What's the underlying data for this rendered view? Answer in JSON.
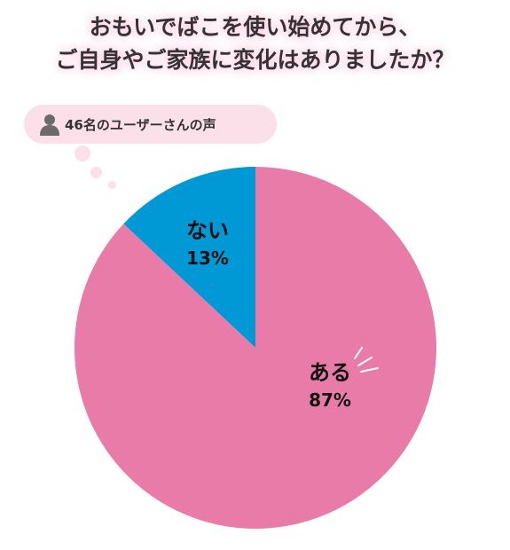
{
  "title": {
    "line1": "おもいでばこを使い始めてから、",
    "line2": "ご自身やご家族に変化はありましたか？"
  },
  "respondents": {
    "text": "46名のユーザーさんの声",
    "icon": "person-icon"
  },
  "chart_data": {
    "type": "pie",
    "slices": [
      {
        "label": "ない",
        "value": 13,
        "value_label": "13%",
        "color": "#0099d6"
      },
      {
        "label": "ある",
        "value": 87,
        "value_label": "87%",
        "color": "#e97ba8"
      }
    ]
  },
  "colors": {
    "title_glow": "#ffd0e3",
    "bubble": "#fbe0ea",
    "text": "#333333"
  }
}
